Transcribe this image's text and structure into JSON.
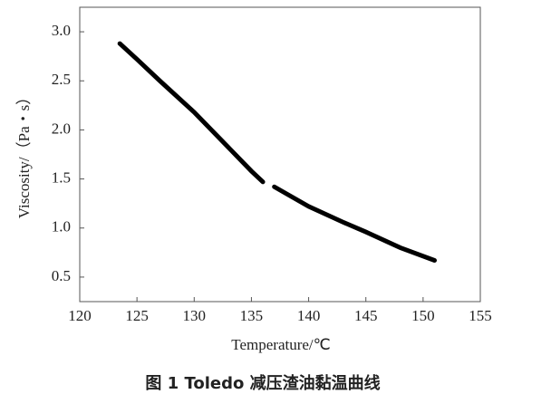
{
  "chart_data": {
    "type": "line",
    "title": "图 1   Toledo 减压渣油黏温曲线",
    "x_label": "Temperature/℃",
    "y_label": "Viscosity/（Pa・s）",
    "x": [
      123.5,
      125,
      127,
      130,
      133,
      135,
      136,
      136.5,
      137,
      140,
      143,
      145,
      148,
      151
    ],
    "series": [
      {
        "color": "#000000",
        "values": [
          2.88,
          2.72,
          2.5,
          2.18,
          1.82,
          1.58,
          1.47,
          null,
          1.42,
          1.22,
          1.06,
          0.96,
          0.8,
          0.67
        ]
      }
    ],
    "xlim": [
      120,
      155
    ],
    "xticks": [
      120,
      125,
      130,
      135,
      140,
      145,
      150,
      155
    ],
    "ylim": [
      0.25,
      3.25
    ],
    "yticks": [
      0.5,
      {
        "value": 1,
        "label": "1.0"
      },
      1.5,
      {
        "value": 2,
        "label": "2.0"
      },
      2.5,
      {
        "value": 3,
        "label": "3.0"
      }
    ],
    "grid": false
  }
}
